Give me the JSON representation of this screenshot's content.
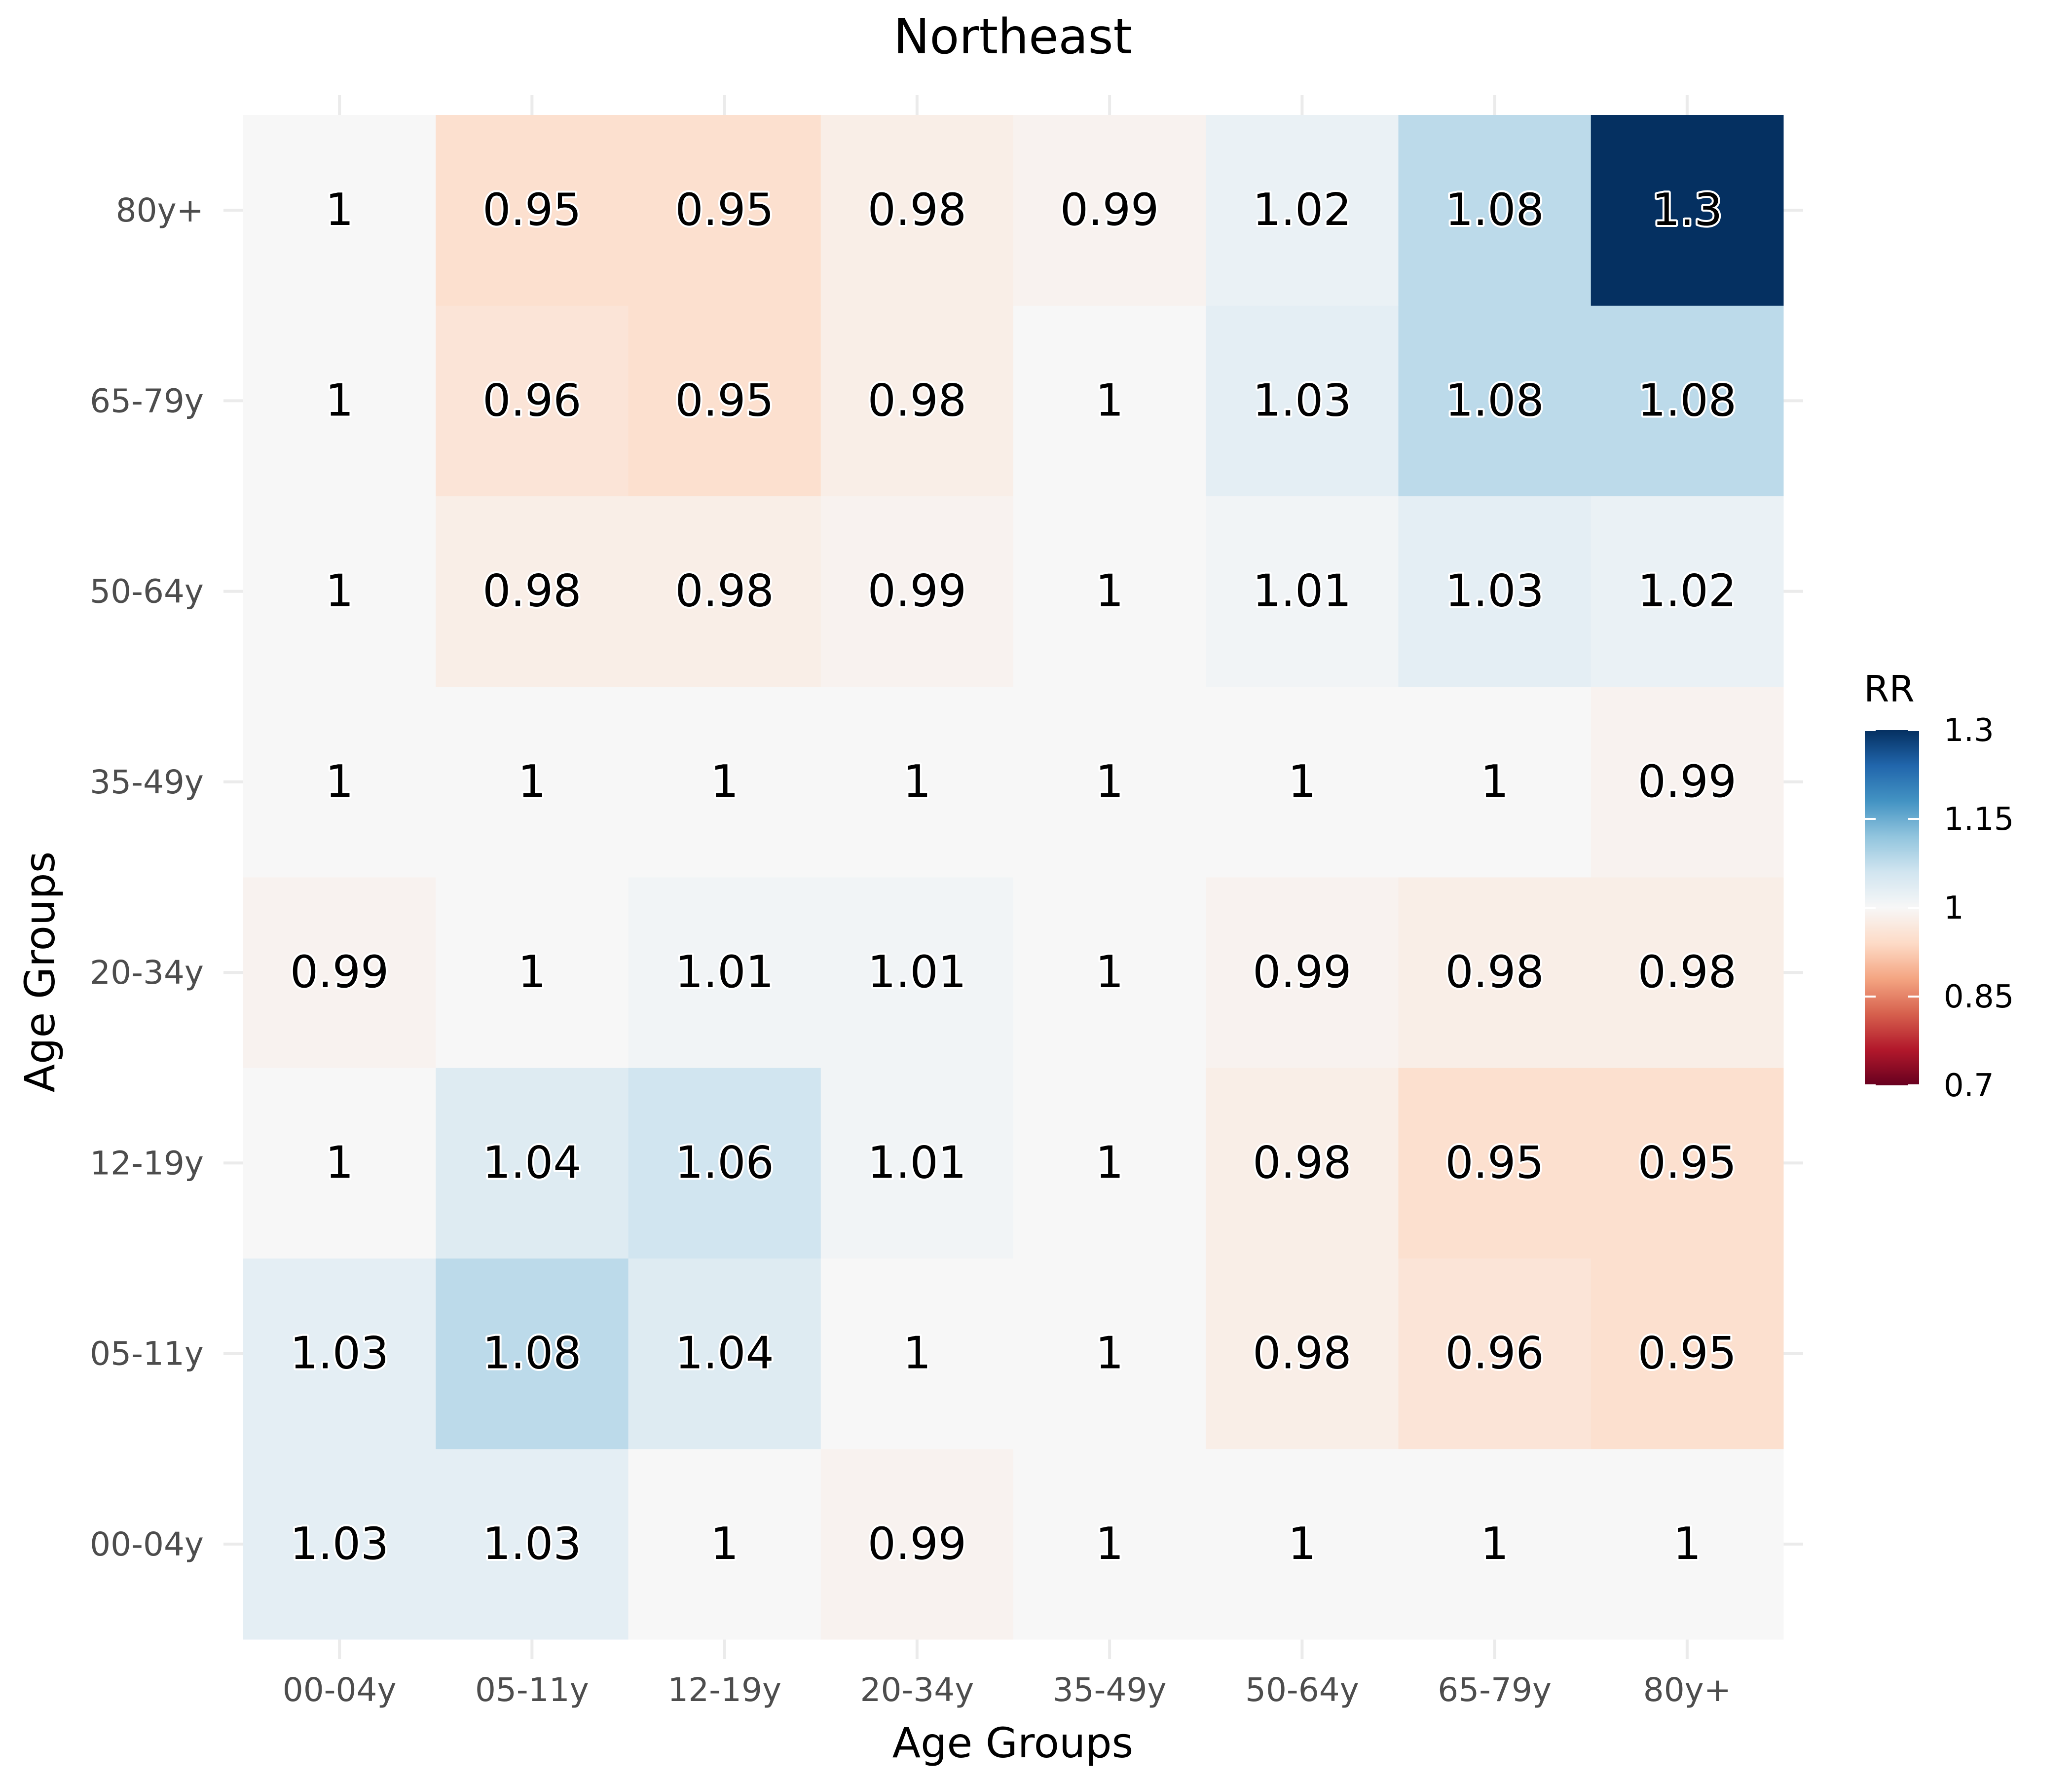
{
  "chart_data": {
    "type": "heatmap",
    "title": "Northeast",
    "xlabel": "Age Groups",
    "ylabel": "Age Groups",
    "x_categories": [
      "00-04y",
      "05-11y",
      "12-19y",
      "20-34y",
      "35-49y",
      "50-64y",
      "65-79y",
      "80y+"
    ],
    "y_categories": [
      "00-04y",
      "05-11y",
      "12-19y",
      "20-34y",
      "35-49y",
      "50-64y",
      "65-79y",
      "80y+"
    ],
    "cells": [
      [
        "1.03",
        "1.03",
        "1",
        "0.99",
        "1",
        "1",
        "1",
        "1"
      ],
      [
        "1.03",
        "1.08",
        "1.04",
        "1",
        "1",
        "0.98",
        "0.96",
        "0.95"
      ],
      [
        "1",
        "1.04",
        "1.06",
        "1.01",
        "1",
        "0.98",
        "0.95",
        "0.95"
      ],
      [
        "0.99",
        "1",
        "1.01",
        "1.01",
        "1",
        "0.99",
        "0.98",
        "0.98"
      ],
      [
        "1",
        "1",
        "1",
        "1",
        "1",
        "1",
        "1",
        "0.99"
      ],
      [
        "1",
        "0.98",
        "0.98",
        "0.99",
        "1",
        "1.01",
        "1.03",
        "1.02"
      ],
      [
        "1",
        "0.96",
        "0.95",
        "0.98",
        "1",
        "1.03",
        "1.08",
        "1.08"
      ],
      [
        "1",
        "0.95",
        "0.95",
        "0.98",
        "0.99",
        "1.02",
        "1.08",
        "1.3"
      ]
    ],
    "legend": {
      "title": "RR",
      "ticks": [
        "1.3",
        "1.15",
        "1",
        "0.85",
        "0.7"
      ],
      "tick_values": [
        1.3,
        1.15,
        1.0,
        0.85,
        0.7
      ],
      "range": [
        0.7,
        1.3
      ],
      "placement": "right"
    },
    "colorscale": [
      "#67001f",
      "#b2182b",
      "#d6604d",
      "#f4a582",
      "#fddbc7",
      "#f7f7f7",
      "#d1e5f0",
      "#92c5de",
      "#4393c3",
      "#2166ac",
      "#053061"
    ],
    "grid": true
  }
}
